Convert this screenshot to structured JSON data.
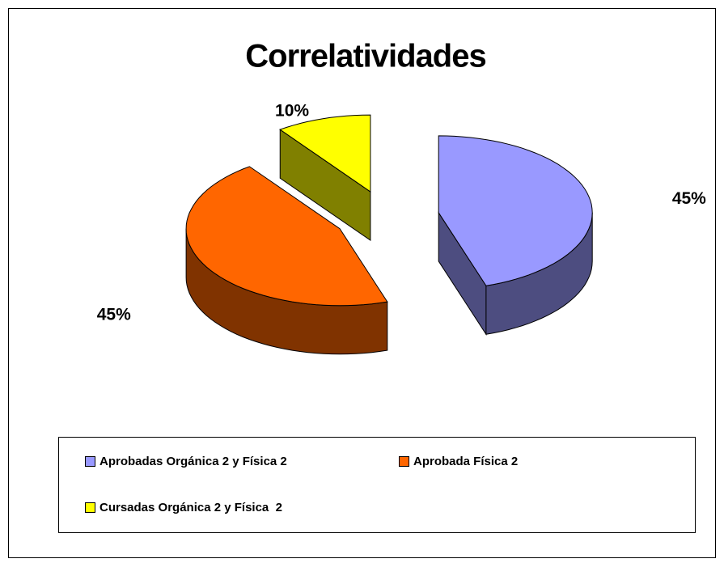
{
  "chart_data": {
    "type": "pie",
    "title": "Correlatividades",
    "categories": [
      "Aprobadas Orgánica 2 y Física 2",
      "Aprobada Física 2",
      "Cursadas Orgánica 2 y Física  2"
    ],
    "values": [
      45,
      45,
      10
    ],
    "value_labels": [
      "45%",
      "45%",
      "10%"
    ],
    "colors": [
      "#9999ff",
      "#ff6600",
      "#ffff00"
    ],
    "legend": "bottom"
  }
}
